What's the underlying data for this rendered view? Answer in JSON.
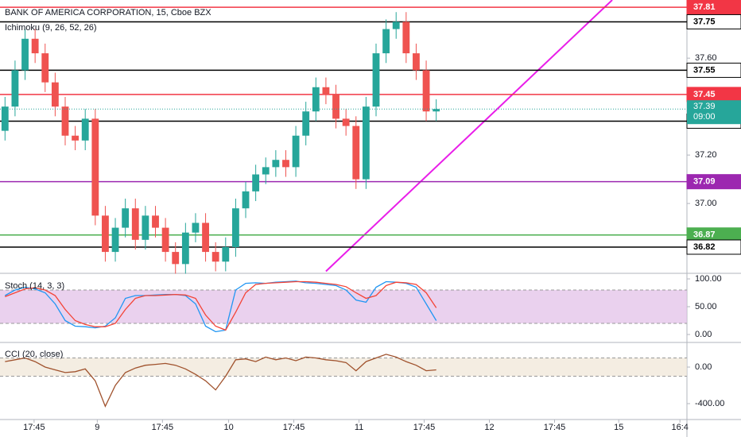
{
  "chart_data": [
    {
      "type": "candlestick",
      "title": "BANK OF AMERICA CORPORATION, 15, Cboe BZX",
      "subtitle": "Ichimoku (9, 26, 52, 26)",
      "up_color": "#26a69a",
      "down_color": "#ef5350",
      "open": [
        37.3,
        37.4,
        37.55,
        37.68,
        37.62,
        37.5,
        37.4,
        37.28,
        37.26,
        37.35,
        36.95,
        36.8,
        36.9,
        36.98,
        36.85,
        36.95,
        36.9,
        36.8,
        36.75,
        36.88,
        36.92,
        36.8,
        36.76,
        36.82,
        36.98,
        37.05,
        37.12,
        37.15,
        37.18,
        37.15,
        37.28,
        37.38,
        37.48,
        37.45,
        37.35,
        37.32,
        37.1,
        37.4,
        37.62,
        37.72,
        37.75,
        37.62,
        37.55,
        37.38
      ],
      "high": [
        37.44,
        37.59,
        37.72,
        37.72,
        37.66,
        37.54,
        37.44,
        37.32,
        37.39,
        37.39,
        36.99,
        36.94,
        37.02,
        37.02,
        36.99,
        36.99,
        36.94,
        36.84,
        36.92,
        36.96,
        36.96,
        36.84,
        36.86,
        37.02,
        37.09,
        37.16,
        37.19,
        37.22,
        37.22,
        37.32,
        37.42,
        37.52,
        37.52,
        37.49,
        37.39,
        37.36,
        37.44,
        37.66,
        37.76,
        37.79,
        37.79,
        37.66,
        37.59,
        37.43
      ],
      "low": [
        37.26,
        37.36,
        37.51,
        37.58,
        37.46,
        37.36,
        37.24,
        37.22,
        37.22,
        36.91,
        36.76,
        36.76,
        36.86,
        36.81,
        36.81,
        36.86,
        36.76,
        36.71,
        36.71,
        36.84,
        36.76,
        36.72,
        36.72,
        36.78,
        36.94,
        37.01,
        37.08,
        37.11,
        37.11,
        37.11,
        37.24,
        37.34,
        37.41,
        37.31,
        37.28,
        37.06,
        37.06,
        37.36,
        37.58,
        37.68,
        37.58,
        37.51,
        37.34,
        37.34
      ],
      "close": [
        37.4,
        37.55,
        37.68,
        37.62,
        37.5,
        37.4,
        37.28,
        37.26,
        37.35,
        36.95,
        36.8,
        36.9,
        36.98,
        36.85,
        36.95,
        36.9,
        36.8,
        36.75,
        36.88,
        36.92,
        36.8,
        36.76,
        36.82,
        36.98,
        37.05,
        37.12,
        37.15,
        37.18,
        37.15,
        37.28,
        37.38,
        37.48,
        37.45,
        37.35,
        37.32,
        37.1,
        37.4,
        37.62,
        37.72,
        37.75,
        37.62,
        37.55,
        37.38,
        37.39
      ],
      "ylim": [
        36.715,
        37.84
      ],
      "yticks": [
        {
          "value": 37.6,
          "label": "37.60"
        },
        {
          "value": 37.2,
          "label": "37.20"
        },
        {
          "value": 37.0,
          "label": "37.00"
        }
      ],
      "levels": [
        {
          "value": 37.81,
          "color": "#f23645"
        },
        {
          "value": 37.75,
          "color": "#000000"
        },
        {
          "value": 37.55,
          "color": "#000000"
        },
        {
          "value": 37.45,
          "color": "#f23645"
        },
        {
          "value": 37.34,
          "color": "#000000"
        },
        {
          "value": 37.09,
          "color": "#9c27b0"
        },
        {
          "value": 36.87,
          "color": "#4caf50"
        },
        {
          "value": 36.82,
          "color": "#000000"
        }
      ],
      "last_price": {
        "value": 37.39,
        "time": "09:00",
        "color": "#26a69a"
      },
      "trend_line": {
        "x": [
          32.0,
          60.55
        ],
        "values": [
          36.72,
          37.84
        ],
        "color": "#e91ee9"
      }
    },
    {
      "type": "line",
      "title": "Stoch (14, 3, 3)",
      "band": [
        20,
        80
      ],
      "band_color": "#e1bee7",
      "series": [
        {
          "color": "#2196f3",
          "values": [
            70,
            80,
            85,
            82,
            75,
            55,
            25,
            15,
            14,
            12,
            15,
            30,
            65,
            70,
            70,
            71,
            72,
            72,
            70,
            55,
            15,
            5,
            8,
            80,
            92,
            93,
            92,
            94,
            95,
            96,
            93,
            92,
            90,
            88,
            80,
            62,
            58,
            85,
            95,
            94,
            92,
            85,
            55,
            25
          ]
        },
        {
          "color": "#f44336",
          "values": [
            68,
            75,
            82,
            84,
            80,
            70,
            45,
            25,
            18,
            14,
            14,
            20,
            45,
            65,
            70,
            70,
            71,
            72,
            71,
            65,
            35,
            15,
            8,
            40,
            75,
            90,
            92,
            93,
            94,
            95,
            95,
            94,
            92,
            90,
            86,
            75,
            65,
            70,
            88,
            94,
            93,
            90,
            75,
            48
          ]
        }
      ],
      "ylim": [
        -12.9,
        108.6
      ],
      "yticks": [
        {
          "value": 100,
          "label": "100.00"
        },
        {
          "value": 50,
          "label": "50.00"
        },
        {
          "value": 0,
          "label": "0.00"
        }
      ]
    },
    {
      "type": "line",
      "title": "CCI (20, close)",
      "band": [
        -100,
        100
      ],
      "band_color": "#efe6d6",
      "series": [
        {
          "color": "#a0522d",
          "values": [
            60,
            80,
            100,
            60,
            0,
            -30,
            -60,
            -50,
            -20,
            -150,
            -430,
            -200,
            -60,
            -10,
            20,
            30,
            40,
            20,
            -20,
            -80,
            -150,
            -250,
            -100,
            80,
            90,
            60,
            110,
            80,
            100,
            70,
            110,
            100,
            80,
            70,
            50,
            -40,
            60,
            100,
            140,
            110,
            60,
            20,
            -40,
            -30
          ]
        }
      ],
      "ylim": [
        -574,
        261
      ],
      "yticks": [
        {
          "value": 0,
          "label": "0.00"
        },
        {
          "value": -400,
          "label": "-400.00"
        }
      ],
      "xlim": [
        -0.5,
        68
      ],
      "xticks": [
        {
          "value": 2.9,
          "label": "17:45"
        },
        {
          "value": 9.2,
          "label": "9"
        },
        {
          "value": 15.7,
          "label": "17:45"
        },
        {
          "value": 22.3,
          "label": "10"
        },
        {
          "value": 28.8,
          "label": "17:45"
        },
        {
          "value": 35.3,
          "label": "11"
        },
        {
          "value": 41.8,
          "label": "17:45"
        },
        {
          "value": 48.3,
          "label": "12"
        },
        {
          "value": 54.8,
          "label": "17:45"
        },
        {
          "value": 61.2,
          "label": "15"
        },
        {
          "value": 67.3,
          "label": "16:4"
        }
      ]
    }
  ]
}
